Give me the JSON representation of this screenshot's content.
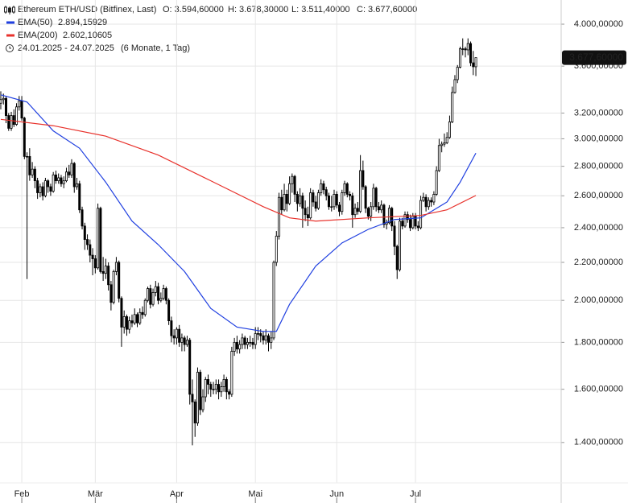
{
  "chart_data": {
    "type": "candlestick",
    "title": "Ethereum ETH/USD (Bitfinex, Last)",
    "header_ohlc": [
      "O: 3.594,60000",
      "H: 3.678,30000",
      "L: 3.511,40000",
      "C: 3.677,60000"
    ],
    "date_range": "24.01.2025 - 24.07.2025",
    "period": "(6 Monate, 1 Tag)",
    "log_scale": true,
    "grid": true,
    "up_color": "#ffffff",
    "down_color": "#000000",
    "wick_color": "#000000",
    "xlim": [
      -0.3,
      213.5
    ],
    "xticks": [
      {
        "value": 8,
        "label": "Feb"
      },
      {
        "value": 36,
        "label": "Mär"
      },
      {
        "value": 67,
        "label": "Apr"
      },
      {
        "value": 97,
        "label": "Mai"
      },
      {
        "value": 128,
        "label": "Jun"
      },
      {
        "value": 158,
        "label": "Jul"
      }
    ],
    "ylim": [
      1265,
      4250
    ],
    "yticks": [
      {
        "value": 4000,
        "label": "4.000,00000"
      },
      {
        "value": 3600,
        "label": "3.600,00000"
      },
      {
        "value": 3200,
        "label": "3.200,00000"
      },
      {
        "value": 3000,
        "label": "3.000,00000"
      },
      {
        "value": 2800,
        "label": "2.800,00000"
      },
      {
        "value": 2600,
        "label": "2.600,00000"
      },
      {
        "value": 2400,
        "label": "2.400,00000"
      },
      {
        "value": 2200,
        "label": "2.200,00000"
      },
      {
        "value": 2000,
        "label": "2.000,00000"
      },
      {
        "value": 1800,
        "label": "1.800,00000"
      },
      {
        "value": 1600,
        "label": "1.600,00000"
      },
      {
        "value": 1400,
        "label": "1.400,00000"
      }
    ],
    "last_price": {
      "value": 3677.6,
      "label": "3.677,60000"
    },
    "open": [
      3280,
      3310,
      3320,
      3180,
      3080,
      3180,
      3110,
      3250,
      3300,
      3160,
      2870,
      2870,
      2740,
      2780,
      2700,
      2620,
      2660,
      2600,
      2700,
      2660,
      2630,
      2740,
      2700,
      2720,
      2680,
      2700,
      2760,
      2740,
      2820,
      2660,
      2680,
      2510,
      2410,
      2330,
      2300,
      2240,
      2220,
      2170,
      2520,
      2150,
      2140,
      2180,
      2080,
      1990,
      2150,
      2200,
      2010,
      1870,
      1920,
      1860,
      1900,
      1890,
      1930,
      1890,
      1940,
      1930,
      2000,
      2060,
      1980,
      2040,
      2070,
      2000,
      2010,
      2060,
      2000,
      1900,
      1830,
      1820,
      1860,
      1800,
      1820,
      1790,
      1810,
      1580,
      1550,
      1470,
      1670,
      1520,
      1570,
      1640,
      1620,
      1600,
      1600,
      1620,
      1590,
      1610,
      1640,
      1590,
      1580,
      1760,
      1800,
      1770,
      1790,
      1820,
      1790,
      1800,
      1800,
      1790,
      1840,
      1840,
      1830,
      1810,
      1830,
      1800,
      1820,
      2200,
      2350,
      2590,
      2510,
      2610,
      2550,
      2680,
      2730,
      2610,
      2550,
      2600,
      2520,
      2480,
      2460,
      2620,
      2560,
      2520,
      2620,
      2680,
      2640,
      2600,
      2530,
      2530,
      2610,
      2540,
      2500,
      2620,
      2680,
      2610,
      2600,
      2480,
      2520,
      2500,
      2770,
      2660,
      2520,
      2470,
      2530,
      2650,
      2530,
      2510,
      2540,
      2420,
      2430,
      2520,
      2410,
      2290,
      2160,
      2440,
      2410,
      2480,
      2450,
      2400,
      2470,
      2410,
      2400,
      2570,
      2590,
      2530,
      2570,
      2560,
      2610,
      2770,
      2950,
      2960,
      2970,
      3010,
      3130,
      3370,
      3480,
      3590,
      3760,
      3760,
      3750,
      3810,
      3630,
      3594.6
    ],
    "high": [
      3380,
      3360,
      3340,
      3200,
      3210,
      3230,
      3280,
      3340,
      3340,
      3170,
      2900,
      2930,
      2830,
      2800,
      2720,
      2680,
      2690,
      2720,
      2710,
      2680,
      2760,
      2770,
      2750,
      2740,
      2730,
      2790,
      2810,
      2850,
      2830,
      2720,
      2700,
      2530,
      2430,
      2360,
      2330,
      2280,
      2240,
      2550,
      2530,
      2230,
      2220,
      2200,
      2100,
      2160,
      2230,
      2210,
      2020,
      1950,
      1930,
      1920,
      1930,
      1960,
      1940,
      1960,
      1970,
      2010,
      2070,
      2080,
      2060,
      2100,
      2090,
      2040,
      2080,
      2070,
      2010,
      1920,
      1860,
      1870,
      1880,
      1840,
      1830,
      1830,
      1820,
      1640,
      1560,
      1690,
      1680,
      1600,
      1650,
      1660,
      1630,
      1630,
      1640,
      1640,
      1630,
      1660,
      1650,
      1600,
      1780,
      1820,
      1830,
      1810,
      1840,
      1830,
      1820,
      1830,
      1820,
      1870,
      1870,
      1860,
      1850,
      1860,
      1840,
      1850,
      2210,
      2380,
      2620,
      2640,
      2680,
      2640,
      2730,
      2750,
      2740,
      2630,
      2650,
      2620,
      2570,
      2530,
      2650,
      2640,
      2600,
      2640,
      2710,
      2700,
      2660,
      2620,
      2600,
      2640,
      2630,
      2560,
      2640,
      2700,
      2690,
      2630,
      2620,
      2550,
      2560,
      2880,
      2840,
      2670,
      2530,
      2560,
      2680,
      2660,
      2560,
      2570,
      2550,
      2450,
      2540,
      2530,
      2440,
      2300,
      2460,
      2460,
      2500,
      2500,
      2480,
      2490,
      2490,
      2440,
      2600,
      2620,
      2610,
      2590,
      2590,
      2630,
      2800,
      3000,
      2980,
      3040,
      3050,
      3180,
      3420,
      3520,
      3610,
      3780,
      3860,
      3780,
      3860,
      3830,
      3740,
      3678.3
    ],
    "low": [
      3230,
      3270,
      3120,
      3060,
      3060,
      3090,
      3100,
      3220,
      3140,
      2850,
      2110,
      2700,
      2720,
      2650,
      2580,
      2590,
      2570,
      2590,
      2620,
      2600,
      2620,
      2680,
      2680,
      2660,
      2650,
      2690,
      2720,
      2720,
      2620,
      2640,
      2490,
      2390,
      2270,
      2270,
      2200,
      2130,
      2140,
      2160,
      2140,
      2100,
      2110,
      2050,
      1950,
      1980,
      2130,
      1990,
      1780,
      1840,
      1830,
      1840,
      1870,
      1880,
      1870,
      1880,
      1910,
      1920,
      1990,
      1960,
      1970,
      2020,
      1980,
      1990,
      2000,
      1980,
      1880,
      1800,
      1790,
      1790,
      1780,
      1760,
      1760,
      1780,
      1540,
      1390,
      1420,
      1460,
      1500,
      1510,
      1550,
      1580,
      1570,
      1580,
      1580,
      1560,
      1570,
      1590,
      1560,
      1560,
      1570,
      1740,
      1750,
      1750,
      1770,
      1770,
      1770,
      1780,
      1770,
      1770,
      1810,
      1800,
      1790,
      1790,
      1760,
      1770,
      1810,
      2180,
      2330,
      2480,
      2500,
      2500,
      2540,
      2620,
      2560,
      2500,
      2530,
      2400,
      2440,
      2410,
      2450,
      2530,
      2500,
      2510,
      2600,
      2610,
      2570,
      2510,
      2500,
      2510,
      2520,
      2470,
      2480,
      2600,
      2590,
      2570,
      2400,
      2460,
      2480,
      2490,
      2640,
      2490,
      2450,
      2440,
      2510,
      2500,
      2490,
      2490,
      2400,
      2390,
      2420,
      2380,
      2240,
      2110,
      2150,
      2390,
      2400,
      2430,
      2380,
      2390,
      2390,
      2380,
      2390,
      2560,
      2500,
      2510,
      2530,
      2540,
      2600,
      2760,
      2900,
      2940,
      2960,
      3000,
      3120,
      3360,
      3450,
      3580,
      3700,
      3680,
      3700,
      3600,
      3520,
      3511.4
    ],
    "close": [
      3310,
      3320,
      3180,
      3080,
      3180,
      3110,
      3250,
      3300,
      3160,
      2870,
      2870,
      2740,
      2780,
      2700,
      2620,
      2660,
      2600,
      2700,
      2660,
      2630,
      2740,
      2700,
      2720,
      2680,
      2700,
      2760,
      2740,
      2820,
      2660,
      2680,
      2510,
      2410,
      2330,
      2300,
      2240,
      2220,
      2170,
      2520,
      2150,
      2140,
      2180,
      2080,
      1990,
      2150,
      2200,
      2010,
      1870,
      1920,
      1860,
      1900,
      1890,
      1930,
      1890,
      1940,
      1930,
      2000,
      2060,
      1980,
      2040,
      2070,
      2000,
      2010,
      2060,
      2000,
      1900,
      1830,
      1820,
      1860,
      1800,
      1820,
      1790,
      1810,
      1580,
      1550,
      1470,
      1670,
      1520,
      1570,
      1640,
      1620,
      1600,
      1600,
      1620,
      1590,
      1610,
      1640,
      1590,
      1580,
      1760,
      1800,
      1770,
      1790,
      1820,
      1790,
      1800,
      1800,
      1790,
      1840,
      1840,
      1830,
      1810,
      1830,
      1800,
      1820,
      2200,
      2350,
      2590,
      2510,
      2610,
      2550,
      2680,
      2730,
      2610,
      2550,
      2600,
      2520,
      2480,
      2460,
      2620,
      2560,
      2520,
      2620,
      2680,
      2640,
      2600,
      2530,
      2530,
      2610,
      2540,
      2500,
      2620,
      2680,
      2610,
      2600,
      2480,
      2520,
      2500,
      2770,
      2660,
      2520,
      2470,
      2530,
      2650,
      2530,
      2510,
      2540,
      2420,
      2430,
      2520,
      2410,
      2290,
      2160,
      2440,
      2410,
      2480,
      2450,
      2400,
      2470,
      2410,
      2400,
      2570,
      2590,
      2530,
      2570,
      2560,
      2610,
      2770,
      2950,
      2960,
      2970,
      3010,
      3130,
      3370,
      3480,
      3590,
      3760,
      3760,
      3750,
      3810,
      3630,
      3594.6,
      3677.6
    ],
    "series": [
      {
        "name": "EMA(50)",
        "color": "#1f3fe0",
        "last": {
          "value": 2894.15929,
          "label": "2.894,15929"
        },
        "x": [
          0,
          10,
          20,
          30,
          40,
          50,
          60,
          70,
          80,
          90,
          100,
          105,
          110,
          120,
          130,
          140,
          150,
          160,
          170,
          175,
          181
        ],
        "values": [
          3350,
          3290,
          3060,
          2930,
          2690,
          2440,
          2300,
          2150,
          1960,
          1870,
          1850,
          1850,
          1980,
          2180,
          2310,
          2390,
          2450,
          2460,
          2560,
          2690,
          2894.15929
        ]
      },
      {
        "name": "EMA(200)",
        "color": "#e8322c",
        "last": {
          "value": 2602.10605,
          "label": "2.602,10605"
        },
        "x": [
          0,
          20,
          40,
          60,
          80,
          100,
          110,
          120,
          140,
          160,
          170,
          181
        ],
        "values": [
          3150,
          3100,
          3020,
          2880,
          2700,
          2530,
          2460,
          2440,
          2460,
          2475,
          2510,
          2602.10605
        ]
      }
    ]
  }
}
